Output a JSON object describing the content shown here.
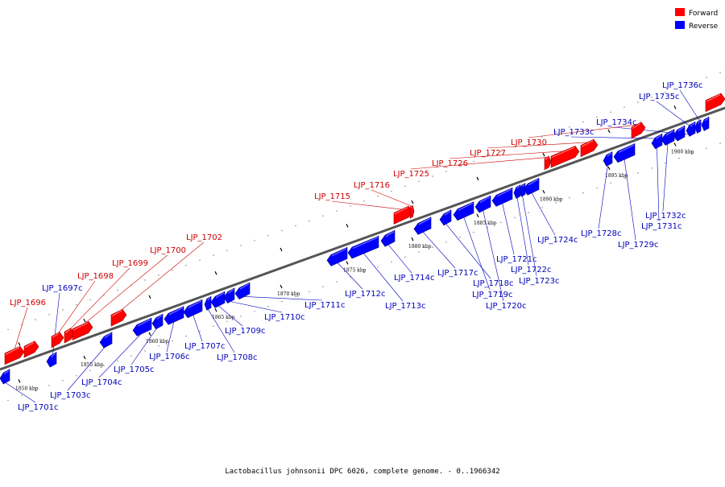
{
  "colors": {
    "forward": "#ff0000",
    "reverse": "#0000ff",
    "label_forward": "#cc0000",
    "label_reverse": "#0000bb",
    "backbone": "#555555"
  },
  "legend": {
    "forward_label": "Forward",
    "reverse_label": "Reverse"
  },
  "caption": "Lactobacillus johnsonii DPC 6026, complete genome. - 0..1966342",
  "axis": {
    "unit": "kbp",
    "ticks": [
      "1850 kbp",
      "1855 kbp",
      "1860 kbp",
      "1865 kbp",
      "1870 kbp",
      "1875 kbp",
      "1880 kbp",
      "1885 kbp",
      "1890 kbp",
      "1895 kbp",
      "1900 kbp"
    ]
  },
  "genes": [
    {
      "id": "LJP_1696",
      "strand": "forward"
    },
    {
      "id": "LJP_1697c",
      "strand": "reverse"
    },
    {
      "id": "LJP_1698",
      "strand": "forward"
    },
    {
      "id": "LJP_1699",
      "strand": "forward"
    },
    {
      "id": "LJP_1700",
      "strand": "forward"
    },
    {
      "id": "LJP_1701c",
      "strand": "reverse"
    },
    {
      "id": "LJP_1702",
      "strand": "forward"
    },
    {
      "id": "LJP_1703c",
      "strand": "reverse"
    },
    {
      "id": "LJP_1704c",
      "strand": "reverse"
    },
    {
      "id": "LJP_1705c",
      "strand": "reverse"
    },
    {
      "id": "LJP_1706c",
      "strand": "reverse"
    },
    {
      "id": "LJP_1707c",
      "strand": "reverse"
    },
    {
      "id": "LJP_1708c",
      "strand": "reverse"
    },
    {
      "id": "LJP_1709c",
      "strand": "reverse"
    },
    {
      "id": "LJP_1710c",
      "strand": "reverse"
    },
    {
      "id": "LJP_1711c",
      "strand": "reverse"
    },
    {
      "id": "LJP_1712c",
      "strand": "reverse"
    },
    {
      "id": "LJP_1713c",
      "strand": "reverse"
    },
    {
      "id": "LJP_1714c",
      "strand": "reverse"
    },
    {
      "id": "LJP_1715",
      "strand": "forward"
    },
    {
      "id": "LJP_1716",
      "strand": "forward"
    },
    {
      "id": "LJP_1717c",
      "strand": "reverse"
    },
    {
      "id": "LJP_1718c",
      "strand": "reverse"
    },
    {
      "id": "LJP_1719c",
      "strand": "reverse"
    },
    {
      "id": "LJP_1720c",
      "strand": "reverse"
    },
    {
      "id": "LJP_1721c",
      "strand": "reverse"
    },
    {
      "id": "LJP_1722c",
      "strand": "reverse"
    },
    {
      "id": "LJP_1723c",
      "strand": "reverse"
    },
    {
      "id": "LJP_1724c",
      "strand": "reverse"
    },
    {
      "id": "LJP_1725",
      "strand": "forward"
    },
    {
      "id": "LJP_1726",
      "strand": "forward"
    },
    {
      "id": "LJP_1727",
      "strand": "forward"
    },
    {
      "id": "LJP_1728c",
      "strand": "reverse"
    },
    {
      "id": "LJP_1729c",
      "strand": "reverse"
    },
    {
      "id": "LJP_1730",
      "strand": "forward"
    },
    {
      "id": "LJP_1731c",
      "strand": "reverse"
    },
    {
      "id": "LJP_1732c",
      "strand": "reverse"
    },
    {
      "id": "LJP_1733c",
      "strand": "reverse"
    },
    {
      "id": "LJP_1734c",
      "strand": "reverse"
    },
    {
      "id": "LJP_1735c",
      "strand": "reverse"
    },
    {
      "id": "LJP_1736c",
      "strand": "reverse"
    }
  ]
}
